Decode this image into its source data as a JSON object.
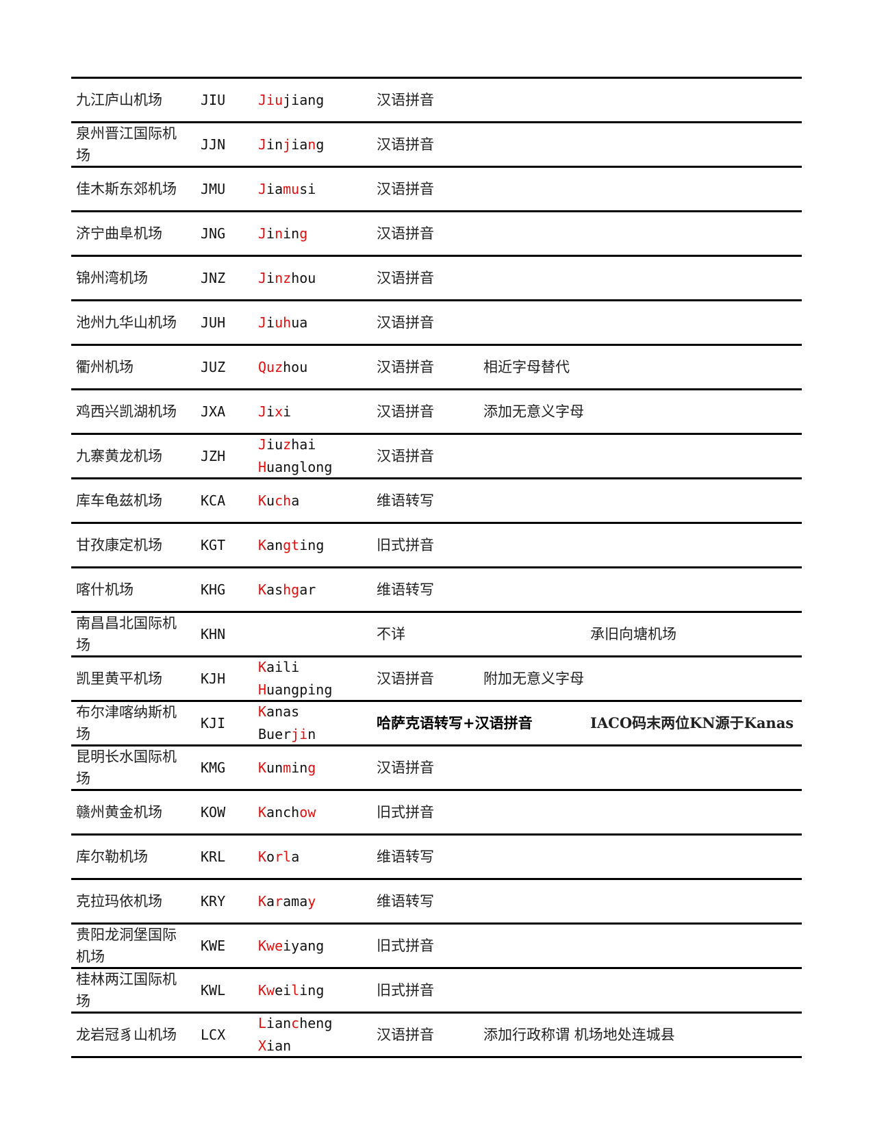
{
  "rows": [
    {
      "name": "九江庐山机场",
      "code": "JIU",
      "roman": [
        [
          {
            "t": "Jiu",
            "r": true
          },
          {
            "t": "jiang",
            "r": false
          }
        ]
      ],
      "method": "汉语拼音",
      "note1": "",
      "note2": ""
    },
    {
      "name": "泉州晋江国际机场",
      "code": "JJN",
      "roman": [
        [
          {
            "t": "J",
            "r": true
          },
          {
            "t": "in",
            "r": false
          },
          {
            "t": "j",
            "r": true
          },
          {
            "t": "ia",
            "r": false
          },
          {
            "t": "n",
            "r": true
          },
          {
            "t": "g",
            "r": false
          }
        ]
      ],
      "method": "汉语拼音",
      "note1": "",
      "note2": ""
    },
    {
      "name": "佳木斯东郊机场",
      "code": "JMU",
      "roman": [
        [
          {
            "t": "J",
            "r": true
          },
          {
            "t": "ia",
            "r": false
          },
          {
            "t": "mu",
            "r": true
          },
          {
            "t": "si",
            "r": false
          }
        ]
      ],
      "method": "汉语拼音",
      "note1": "",
      "note2": ""
    },
    {
      "name": "济宁曲阜机场",
      "code": "JNG",
      "roman": [
        [
          {
            "t": "J",
            "r": true
          },
          {
            "t": "i",
            "r": false
          },
          {
            "t": "n",
            "r": true
          },
          {
            "t": "in",
            "r": false
          },
          {
            "t": "g",
            "r": true
          }
        ]
      ],
      "method": "汉语拼音",
      "note1": "",
      "note2": ""
    },
    {
      "name": "锦州湾机场",
      "code": "JNZ",
      "roman": [
        [
          {
            "t": "J",
            "r": true
          },
          {
            "t": "i",
            "r": false
          },
          {
            "t": "nz",
            "r": true
          },
          {
            "t": "hou",
            "r": false
          }
        ]
      ],
      "method": "汉语拼音",
      "note1": "",
      "note2": ""
    },
    {
      "name": "池州九华山机场",
      "code": "JUH",
      "roman": [
        [
          {
            "t": "J",
            "r": true
          },
          {
            "t": "i",
            "r": false
          },
          {
            "t": "uh",
            "r": true
          },
          {
            "t": "ua",
            "r": false
          }
        ]
      ],
      "method": "汉语拼音",
      "note1": "",
      "note2": ""
    },
    {
      "name": "衢州机场",
      "code": "JUZ",
      "roman": [
        [
          {
            "t": "Quz",
            "r": true
          },
          {
            "t": "hou",
            "r": false
          }
        ]
      ],
      "method": "汉语拼音",
      "note1": "相近字母替代",
      "note2": ""
    },
    {
      "name": "鸡西兴凯湖机场",
      "code": "JXA",
      "roman": [
        [
          {
            "t": "J",
            "r": true
          },
          {
            "t": "i",
            "r": false
          },
          {
            "t": "x",
            "r": true
          },
          {
            "t": "i",
            "r": false
          }
        ]
      ],
      "method": "汉语拼音",
      "note1": "添加无意义字母",
      "note2": ""
    },
    {
      "name": "九寨黄龙机场",
      "code": "JZH",
      "roman": [
        [
          {
            "t": "J",
            "r": true
          },
          {
            "t": "iu",
            "r": false
          },
          {
            "t": "z",
            "r": true
          },
          {
            "t": "hai",
            "r": false
          }
        ],
        [
          {
            "t": "H",
            "r": true
          },
          {
            "t": "uanglong",
            "r": false
          }
        ]
      ],
      "method": "汉语拼音",
      "note1": "",
      "note2": ""
    },
    {
      "name": "库车龟兹机场",
      "code": "KCA",
      "roman": [
        [
          {
            "t": "K",
            "r": true
          },
          {
            "t": "u",
            "r": false
          },
          {
            "t": "ch",
            "r": true
          },
          {
            "t": "a",
            "r": false
          }
        ]
      ],
      "method": "维语转写",
      "note1": "",
      "note2": ""
    },
    {
      "name": "甘孜康定机场",
      "code": "KGT",
      "roman": [
        [
          {
            "t": "K",
            "r": true
          },
          {
            "t": "an",
            "r": false
          },
          {
            "t": "gt",
            "r": true
          },
          {
            "t": "ing",
            "r": false
          }
        ]
      ],
      "method": "旧式拼音",
      "note1": "",
      "note2": ""
    },
    {
      "name": "喀什机场",
      "code": "KHG",
      "roman": [
        [
          {
            "t": "K",
            "r": true
          },
          {
            "t": "as",
            "r": false
          },
          {
            "t": "hg",
            "r": true
          },
          {
            "t": "ar",
            "r": false
          }
        ]
      ],
      "method": "维语转写",
      "note1": "",
      "note2": ""
    },
    {
      "name": "南昌昌北国际机场",
      "code": "KHN",
      "roman": [],
      "method": "不详",
      "note1": "",
      "note2": "承旧向塘机场"
    },
    {
      "name": "凯里黄平机场",
      "code": "KJH",
      "roman": [
        [
          {
            "t": "K",
            "r": true
          },
          {
            "t": "aili",
            "r": false
          }
        ],
        [
          {
            "t": "H",
            "r": true
          },
          {
            "t": "uangping",
            "r": false
          }
        ]
      ],
      "method": "汉语拼音",
      "note1": "附加无意义字母",
      "note2": ""
    },
    {
      "name": "布尔津喀纳斯机场",
      "code": "KJI",
      "roman": [
        [
          {
            "t": "K",
            "r": true
          },
          {
            "t": "anas",
            "r": false
          }
        ],
        [
          {
            "t": "Buer",
            "r": false
          },
          {
            "t": "ji",
            "r": true
          },
          {
            "t": "n",
            "r": false
          }
        ]
      ],
      "method": "哈萨克语转写+汉语拼音",
      "note1": "",
      "note2": "IACO码末两位KN源于Kanas",
      "bold": true
    },
    {
      "name": "昆明长水国际机场",
      "code": "KMG",
      "roman": [
        [
          {
            "t": "K",
            "r": true
          },
          {
            "t": "un",
            "r": false
          },
          {
            "t": "m",
            "r": true
          },
          {
            "t": "in",
            "r": false
          },
          {
            "t": "g",
            "r": true
          }
        ]
      ],
      "method": "汉语拼音",
      "note1": "",
      "note2": ""
    },
    {
      "name": "赣州黄金机场",
      "code": "KOW",
      "roman": [
        [
          {
            "t": "K",
            "r": true
          },
          {
            "t": "anch",
            "r": false
          },
          {
            "t": "ow",
            "r": true
          }
        ]
      ],
      "method": "旧式拼音",
      "note1": "",
      "note2": ""
    },
    {
      "name": "库尔勒机场",
      "code": "KRL",
      "roman": [
        [
          {
            "t": "K",
            "r": true
          },
          {
            "t": "o",
            "r": false
          },
          {
            "t": "rl",
            "r": true
          },
          {
            "t": "a",
            "r": false
          }
        ]
      ],
      "method": "维语转写",
      "note1": "",
      "note2": ""
    },
    {
      "name": "克拉玛依机场",
      "code": "KRY",
      "roman": [
        [
          {
            "t": "K",
            "r": true
          },
          {
            "t": "a",
            "r": false
          },
          {
            "t": "r",
            "r": true
          },
          {
            "t": "ama",
            "r": false
          },
          {
            "t": "y",
            "r": true
          }
        ]
      ],
      "method": "维语转写",
      "note1": "",
      "note2": ""
    },
    {
      "name": "贵阳龙洞堡国际机场",
      "code": "KWE",
      "roman": [
        [
          {
            "t": "Kwe",
            "r": true
          },
          {
            "t": "iyang",
            "r": false
          }
        ]
      ],
      "method": "旧式拼音",
      "note1": "",
      "note2": ""
    },
    {
      "name": "桂林两江国际机场",
      "code": "KWL",
      "roman": [
        [
          {
            "t": "Kw",
            "r": true
          },
          {
            "t": "ei",
            "r": false
          },
          {
            "t": "l",
            "r": true
          },
          {
            "t": "ing",
            "r": false
          }
        ]
      ],
      "method": "旧式拼音",
      "note1": "",
      "note2": ""
    },
    {
      "name": "龙岩冠豸山机场",
      "code": "LCX",
      "roman": [
        [
          {
            "t": "L",
            "r": true
          },
          {
            "t": "ian",
            "r": false
          },
          {
            "t": "c",
            "r": true
          },
          {
            "t": "heng",
            "r": false
          }
        ],
        [
          {
            "t": "X",
            "r": true
          },
          {
            "t": "ian",
            "r": false
          }
        ]
      ],
      "method": "汉语拼音",
      "note1": "添加行政称谓 机场地处连城县",
      "note2": ""
    }
  ],
  "colors": {
    "highlight": "#e01010",
    "text": "#222222",
    "rule": "#000000"
  }
}
